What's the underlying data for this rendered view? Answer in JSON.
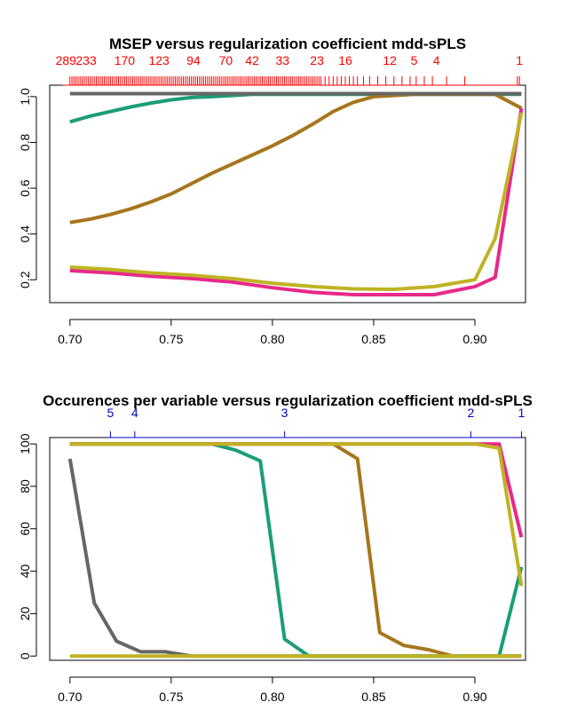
{
  "chart_data": [
    {
      "type": "line",
      "title": "MSEP versus regularization coefficient mdd-sPLS",
      "xlabel": "",
      "ylabel": "",
      "xlim": [
        0.69,
        0.925
      ],
      "ylim": [
        0.1,
        1.05
      ],
      "xticks": [
        "0.70",
        "0.75",
        "0.80",
        "0.85",
        "0.90"
      ],
      "yticks": [
        "0.2",
        "0.4",
        "0.6",
        "0.8",
        "1.0"
      ],
      "grid": false,
      "top_axis": {
        "color": "#ff0000",
        "labels": [
          {
            "text": "289",
            "x": 0.698
          },
          {
            "text": "233",
            "x": 0.708
          },
          {
            "text": "170",
            "x": 0.727
          },
          {
            "text": "123",
            "x": 0.744
          },
          {
            "text": "94",
            "x": 0.761
          },
          {
            "text": "70",
            "x": 0.777
          },
          {
            "text": "42",
            "x": 0.79
          },
          {
            "text": "33",
            "x": 0.805
          },
          {
            "text": "23",
            "x": 0.822
          },
          {
            "text": "16",
            "x": 0.836
          },
          {
            "text": "12",
            "x": 0.858
          },
          {
            "text": "5",
            "x": 0.87
          },
          {
            "text": "4",
            "x": 0.881
          },
          {
            "text": "1",
            "x": 0.922
          }
        ],
        "rug": [
          0.7,
          0.701,
          0.702,
          0.703,
          0.704,
          0.705,
          0.706,
          0.707,
          0.708,
          0.709,
          0.71,
          0.711,
          0.712,
          0.713,
          0.714,
          0.715,
          0.716,
          0.717,
          0.718,
          0.719,
          0.72,
          0.721,
          0.722,
          0.723,
          0.724,
          0.725,
          0.726,
          0.727,
          0.728,
          0.729,
          0.73,
          0.731,
          0.732,
          0.733,
          0.734,
          0.735,
          0.736,
          0.737,
          0.738,
          0.739,
          0.74,
          0.741,
          0.742,
          0.743,
          0.744,
          0.745,
          0.746,
          0.747,
          0.748,
          0.749,
          0.75,
          0.751,
          0.752,
          0.753,
          0.754,
          0.755,
          0.756,
          0.757,
          0.758,
          0.759,
          0.76,
          0.761,
          0.762,
          0.763,
          0.764,
          0.765,
          0.766,
          0.767,
          0.768,
          0.769,
          0.77,
          0.771,
          0.772,
          0.773,
          0.774,
          0.775,
          0.776,
          0.777,
          0.778,
          0.779,
          0.78,
          0.781,
          0.782,
          0.783,
          0.784,
          0.785,
          0.786,
          0.787,
          0.788,
          0.789,
          0.79,
          0.791,
          0.792,
          0.793,
          0.794,
          0.795,
          0.796,
          0.797,
          0.798,
          0.799,
          0.8,
          0.801,
          0.802,
          0.803,
          0.804,
          0.805,
          0.806,
          0.807,
          0.808,
          0.809,
          0.81,
          0.811,
          0.812,
          0.813,
          0.814,
          0.815,
          0.816,
          0.817,
          0.818,
          0.819,
          0.82,
          0.821,
          0.822,
          0.823,
          0.824,
          0.826,
          0.828,
          0.83,
          0.832,
          0.834,
          0.836,
          0.838,
          0.84,
          0.842,
          0.845,
          0.848,
          0.852,
          0.856,
          0.86,
          0.864,
          0.868,
          0.871,
          0.875,
          0.879,
          0.886,
          0.895,
          0.921,
          0.922
        ]
      },
      "series": [
        {
          "color": "#1b9e77",
          "x": [
            0.7,
            0.71,
            0.72,
            0.73,
            0.74,
            0.75,
            0.76,
            0.77,
            0.78,
            0.79,
            0.8,
            0.85,
            0.9,
            0.923
          ],
          "y": [
            0.89,
            0.915,
            0.935,
            0.955,
            0.972,
            0.986,
            0.996,
            1.0,
            1.005,
            1.01,
            1.01,
            1.01,
            1.01,
            1.01
          ]
        },
        {
          "color": "#a6761d",
          "x": [
            0.7,
            0.71,
            0.72,
            0.73,
            0.74,
            0.75,
            0.76,
            0.77,
            0.78,
            0.79,
            0.8,
            0.81,
            0.82,
            0.83,
            0.84,
            0.85,
            0.86,
            0.87,
            0.88,
            0.89,
            0.9,
            0.91,
            0.923
          ],
          "y": [
            0.45,
            0.465,
            0.485,
            0.51,
            0.54,
            0.575,
            0.62,
            0.665,
            0.705,
            0.745,
            0.785,
            0.83,
            0.88,
            0.935,
            0.975,
            1.0,
            1.005,
            1.01,
            1.01,
            1.01,
            1.01,
            1.01,
            0.95
          ]
        },
        {
          "color": "#666666",
          "x": [
            0.7,
            0.923
          ],
          "y": [
            1.013,
            1.013
          ]
        },
        {
          "color": "#e7298a",
          "x": [
            0.7,
            0.72,
            0.74,
            0.76,
            0.78,
            0.8,
            0.82,
            0.84,
            0.86,
            0.88,
            0.9,
            0.91,
            0.923
          ],
          "y": [
            0.24,
            0.23,
            0.215,
            0.205,
            0.19,
            0.165,
            0.145,
            0.135,
            0.135,
            0.135,
            0.17,
            0.21,
            0.95
          ]
        },
        {
          "color": "#bfb323",
          "x": [
            0.7,
            0.72,
            0.74,
            0.76,
            0.78,
            0.8,
            0.82,
            0.84,
            0.86,
            0.88,
            0.9,
            0.91,
            0.923
          ],
          "y": [
            0.255,
            0.245,
            0.23,
            0.22,
            0.205,
            0.185,
            0.17,
            0.16,
            0.158,
            0.17,
            0.2,
            0.38,
            0.93
          ]
        }
      ]
    },
    {
      "type": "line",
      "title": "Occurences per variable versus regularization coefficient mdd-sPLS",
      "xlabel": "",
      "ylabel": "",
      "xlim": [
        0.69,
        0.925
      ],
      "ylim": [
        -2,
        103
      ],
      "xticks": [
        "0.70",
        "0.75",
        "0.80",
        "0.85",
        "0.90"
      ],
      "yticks": [
        "0",
        "20",
        "40",
        "60",
        "80",
        "100"
      ],
      "grid": false,
      "top_axis": {
        "color": "#0000cc",
        "labels": [
          {
            "text": "5",
            "x": 0.72
          },
          {
            "text": "4",
            "x": 0.732
          },
          {
            "text": "3",
            "x": 0.806
          },
          {
            "text": "2",
            "x": 0.898
          },
          {
            "text": "1",
            "x": 0.923
          }
        ]
      },
      "series": [
        {
          "color": "#666666",
          "x": [
            0.7,
            0.712,
            0.723,
            0.735,
            0.747,
            0.76,
            0.923
          ],
          "y": [
            93,
            25,
            7,
            2,
            2,
            0,
            0
          ]
        },
        {
          "color": "#1b9e77",
          "x": [
            0.7,
            0.77,
            0.782,
            0.794,
            0.806,
            0.818,
            0.912,
            0.923
          ],
          "y": [
            100,
            100,
            97,
            92,
            8,
            0,
            0,
            42
          ]
        },
        {
          "color": "#a6761d",
          "x": [
            0.7,
            0.83,
            0.842,
            0.853,
            0.865,
            0.877,
            0.889,
            0.923
          ],
          "y": [
            100,
            100,
            93,
            11,
            5,
            3,
            0,
            0
          ]
        },
        {
          "color": "#e7298a",
          "x": [
            0.7,
            0.912,
            0.923
          ],
          "y": [
            100,
            100,
            56
          ]
        },
        {
          "color": "#bfb323",
          "x": [
            0.7,
            0.75,
            0.923
          ],
          "y": [
            0,
            0,
            0
          ]
        },
        {
          "color": "#bfb323",
          "x": [
            0.7,
            0.9,
            0.912,
            0.923
          ],
          "y": [
            100,
            100,
            98,
            33
          ]
        }
      ]
    }
  ]
}
